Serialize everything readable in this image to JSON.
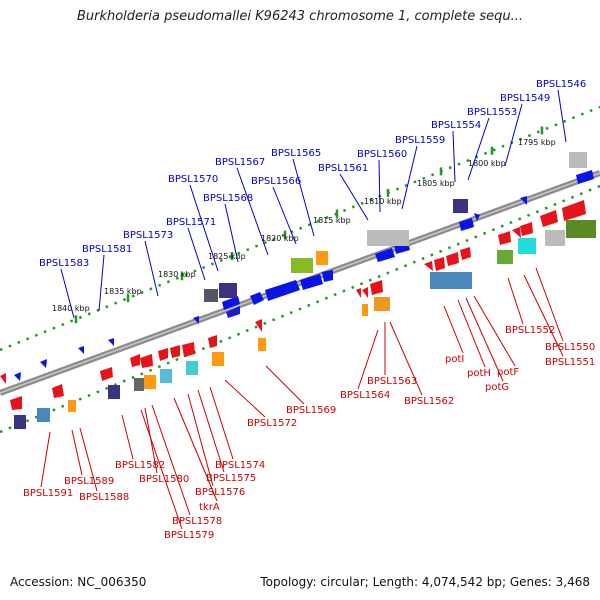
{
  "title": "Burkholderia pseudomallei K96243 chromosome 1, complete sequ...",
  "footer": {
    "accession": "Accession: NC_006350",
    "summary": "Topology: circular; Length: 4,074,542 bp; Genes: 3,468"
  },
  "colors": {
    "forward_label": "#0000cc",
    "reverse_label": "#cc0000",
    "forward_gene": "#0a14e6",
    "reverse_gene": "#e8131a",
    "backbone": "#7a7a7a",
    "tick_dots": "#229922"
  },
  "ticks": [
    "1840 kbp",
    "1835 kbp",
    "1830 kbp",
    "1825 kbp",
    "1820 kbp",
    "1815 kbp",
    "1810 kbp",
    "1805 kbp",
    "1800 kbp",
    "1795 kbp"
  ],
  "forward_labels": [
    "BPSL1583",
    "BPSL1581",
    "BPSL1573",
    "BPSL1571",
    "BPSL1570",
    "BPSL1568",
    "BPSL1567",
    "BPSL1566",
    "BPSL1565",
    "BPSL1561",
    "BPSL1560",
    "BPSL1559",
    "BPSL1554",
    "BPSL1553",
    "BPSL1549",
    "BPSL1546"
  ],
  "reverse_labels": [
    "BPSL1591",
    "BPSL1589",
    "BPSL1588",
    "BPSL1582",
    "BPSL1580",
    "BPSL1578",
    "BPSL1579",
    "tkrA",
    "BPSL1576",
    "BPSL1575",
    "BPSL1574",
    "BPSL1572",
    "BPSL1569",
    "BPSL1564",
    "BPSL1563",
    "BPSL1562",
    "potI",
    "potH",
    "potG",
    "potF",
    "BPSL1552",
    "BPSL1551",
    "BPSL1550"
  ]
}
